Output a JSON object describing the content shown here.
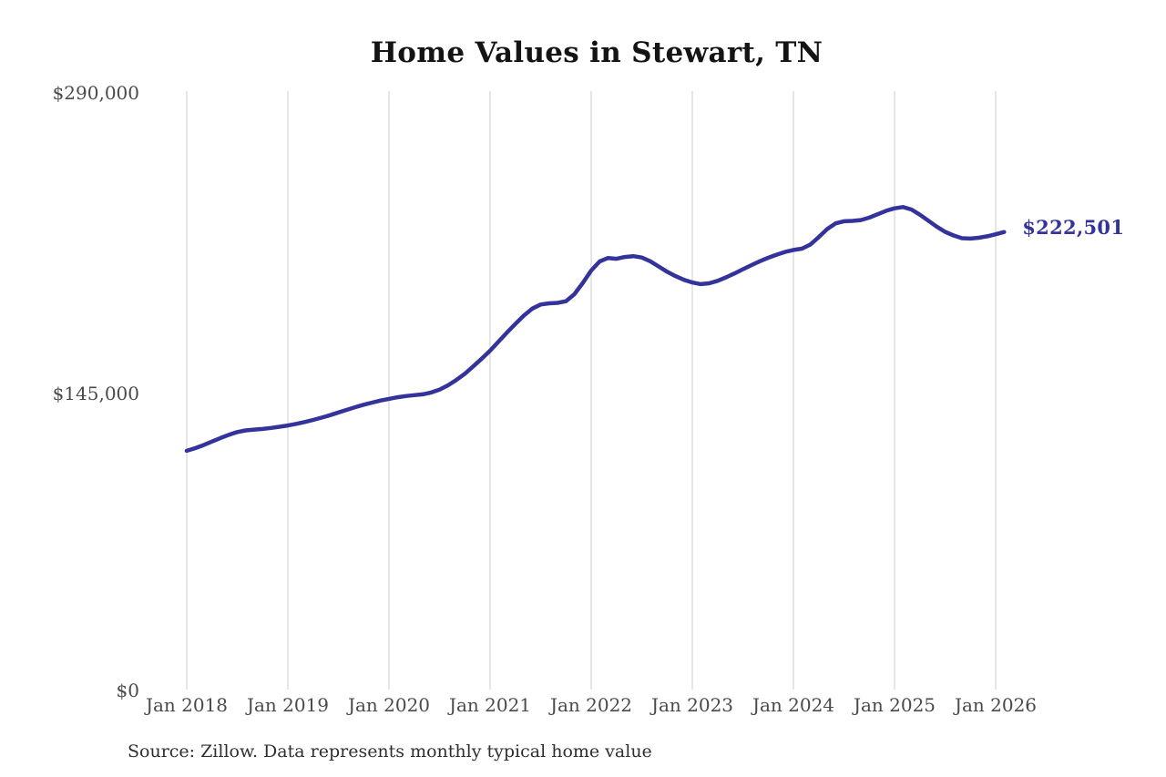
{
  "title": "Home Values in Stewart, TN",
  "end_label": "$222,501",
  "source_note": "Source: Zillow. Data represents monthly typical home value",
  "colors": {
    "line": "#34339b",
    "end_label_text": "#34339b",
    "grid": "#cccccc",
    "axis_text": "#4a4a4a",
    "title_text": "#141414",
    "source_text": "#2f2f2f",
    "background": "#ffffff"
  },
  "chart_data": {
    "type": "line",
    "title": "Home Values in Stewart, TN",
    "series_name": "Monthly typical home value",
    "x_interval": "monthly",
    "x_start": "Jan 2018",
    "x_end": "Feb 2026",
    "x_tick_labels": [
      "Jan 2018",
      "Jan 2019",
      "Jan 2020",
      "Jan 2021",
      "Jan 2022",
      "Jan 2023",
      "Jan 2024",
      "Jan 2025",
      "Jan 2026"
    ],
    "y_ticks": [
      0,
      145000,
      290000
    ],
    "y_tick_labels": [
      "$0",
      "$145,000",
      "$290,000"
    ],
    "ylim": [
      0,
      290000
    ],
    "grid": "vertical-only",
    "legend": "none",
    "final_value": 222501,
    "final_value_label": "$222,501",
    "values": [
      116300,
      117600,
      119100,
      120800,
      122500,
      124100,
      125400,
      126200,
      126600,
      126900,
      127400,
      128000,
      128600,
      129400,
      130300,
      131300,
      132400,
      133600,
      134900,
      136200,
      137500,
      138700,
      139700,
      140700,
      141500,
      142300,
      142900,
      143300,
      143700,
      144600,
      146000,
      148100,
      150700,
      153700,
      157300,
      161000,
      164900,
      169300,
      173700,
      177900,
      181900,
      185300,
      187300,
      187900,
      188100,
      188900,
      192300,
      197800,
      203800,
      208200,
      209900,
      209500,
      210400,
      210800,
      210100,
      208300,
      205800,
      203200,
      201100,
      199300,
      198000,
      197200,
      197600,
      198800,
      200500,
      202400,
      204400,
      206400,
      208300,
      210000,
      211500,
      212800,
      213800,
      214400,
      216400,
      220000,
      223900,
      226700,
      227700,
      227900,
      228300,
      229500,
      231100,
      232800,
      234000,
      234600,
      233400,
      230900,
      228000,
      225100,
      222600,
      220800,
      219500,
      219300,
      219700,
      220400,
      221400,
      222501
    ]
  }
}
